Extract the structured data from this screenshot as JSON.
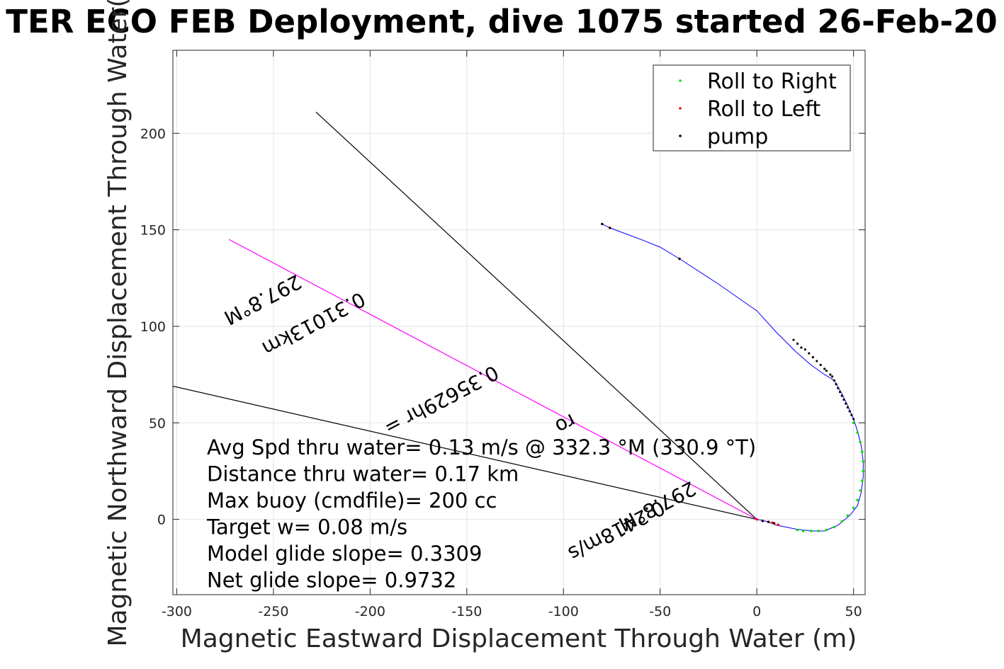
{
  "chart_data": {
    "type": "scatter",
    "title": "TER ECO FEB Deployment, dive 1075 started 26-Feb-20",
    "xlabel": "Magnetic Eastward Displacement Through Water (m)",
    "ylabel": "Magnetic Northward Displacement Through Water(",
    "xlim": [
      -302,
      56
    ],
    "ylim": [
      -39,
      243
    ],
    "xticks": [
      -300,
      -250,
      -200,
      -150,
      -100,
      -50,
      0,
      50
    ],
    "yticks": [
      0,
      50,
      100,
      150,
      200
    ],
    "xtick_labels": [
      "-300",
      "-250",
      "-200",
      "-150",
      "-100",
      "-50",
      "0",
      "50"
    ],
    "ytick_labels": [
      "0",
      "50",
      "100",
      "150",
      "200"
    ],
    "grid": true,
    "legend_position": "top-right",
    "legend": [
      {
        "label": "Roll to Right",
        "color": "#00dd00"
      },
      {
        "label": "Roll to Left",
        "color": "#ff0000"
      },
      {
        "label": "pump",
        "color": "#000000"
      }
    ],
    "track": {
      "color": "#0000ff",
      "x": [
        -80,
        -76,
        -60,
        -50,
        -40,
        -20,
        0,
        10,
        20,
        28,
        35,
        40,
        44,
        47,
        50,
        52,
        54,
        55,
        55,
        54,
        52,
        48,
        42,
        35,
        28,
        20,
        10,
        5,
        0
      ],
      "y": [
        153,
        151,
        145,
        141,
        135,
        122,
        108,
        97,
        87,
        80,
        75,
        72,
        65,
        59,
        52,
        46,
        38,
        30,
        22,
        14,
        7,
        2,
        -3,
        -6,
        -6,
        -5,
        -3,
        -1,
        0
      ]
    },
    "roll_right": {
      "x": [
        50,
        52,
        53.5,
        54.5,
        55,
        55,
        54.5,
        53.5,
        52,
        50,
        47,
        44,
        40,
        36,
        32,
        28,
        24,
        21
      ],
      "y": [
        50,
        45,
        40,
        35,
        30,
        25,
        20,
        15,
        10,
        6,
        2,
        -1,
        -4,
        -5.5,
        -6,
        -6,
        -6,
        -5.5
      ]
    },
    "roll_left": {
      "x": [
        -80,
        -76,
        -40,
        0,
        3,
        6,
        8,
        11
      ],
      "y": [
        153,
        151,
        135,
        0,
        -0.8,
        -1.3,
        -1.7,
        -2.8
      ]
    },
    "pump": {
      "x": [
        -80,
        -76,
        -40,
        19,
        21,
        23,
        25,
        27,
        29,
        31,
        33,
        35,
        36,
        38,
        39,
        40,
        41,
        42,
        43,
        44,
        45,
        46,
        47,
        48,
        49,
        50,
        3,
        6,
        9
      ],
      "y": [
        153,
        151,
        135,
        93,
        91,
        89,
        88,
        86,
        84,
        82,
        80,
        78,
        77,
        75,
        74,
        72,
        70,
        68,
        66,
        64,
        62,
        60,
        58,
        56,
        54,
        52,
        -0.8,
        -1.3,
        -2
      ]
    },
    "rays": [
      {
        "color": "#000000",
        "x": [
          0,
          -228
        ],
        "y": [
          0,
          211
        ]
      },
      {
        "color": "#000000",
        "x": [
          0,
          -302
        ],
        "y": [
          0,
          69
        ]
      },
      {
        "color": "#ff00ff",
        "x": [
          0,
          -273
        ],
        "y": [
          0,
          145
        ]
      }
    ],
    "rotated_labels": [
      {
        "text": "297.8°M",
        "x": -238,
        "y": 127,
        "angle": 152.2
      },
      {
        "text": "0.31013km",
        "x": -205,
        "y": 118,
        "angle": 152.2
      },
      {
        "text": "0.35629hr =",
        "x": -136,
        "y": 80,
        "angle": 152.2
      },
      {
        "text": "ro",
        "x": -96,
        "y": 55,
        "angle": 152.2
      },
      {
        "text": "297.8°M",
        "x": -34,
        "y": 20,
        "angle": 152.2
      },
      {
        "text": "0.2418m/s",
        "x": -50,
        "y": 10,
        "angle": 152.2
      }
    ],
    "annotations": [
      "Avg Spd thru water=  0.13 m/s @ 332.3 °M (330.9 °T)",
      "Distance thru water=  0.17 km",
      "Max buoy (cmdfile)= 200 cc",
      "Target w= 0.08 m/s",
      "Model glide slope= 0.3309",
      "Net glide slope= 0.9732"
    ]
  }
}
